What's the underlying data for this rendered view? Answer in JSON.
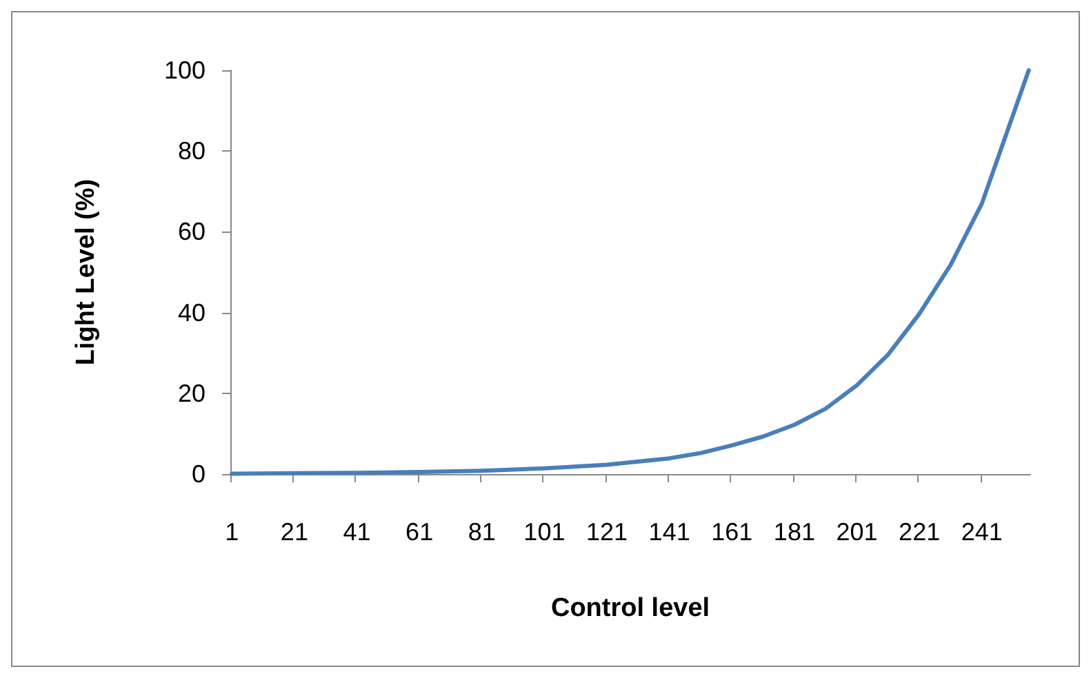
{
  "chart_data": {
    "type": "line",
    "xlabel": "Control level",
    "ylabel": "Light Level (%)",
    "x": [
      1,
      21,
      41,
      61,
      81,
      101,
      121,
      141,
      151,
      161,
      171,
      181,
      191,
      201,
      211,
      221,
      231,
      241,
      256
    ],
    "series": [
      {
        "color": "#4a7ebb",
        "values": [
          0.1,
          0.2,
          0.3,
          0.5,
          0.8,
          1.4,
          2.3,
          3.9,
          5.2,
          7.1,
          9.3,
          12.2,
          16.2,
          22,
          29.6,
          39.7,
          51.8,
          67,
          100
        ]
      }
    ],
    "xlim": [
      0.5,
      256.5
    ],
    "xticks": [
      {
        "value": 0.5,
        "label": null
      },
      1,
      {
        "value": 20.5,
        "label": null
      },
      21,
      {
        "value": 40.5,
        "label": null
      },
      41,
      {
        "value": 60.5,
        "label": null
      },
      61,
      {
        "value": 80.5,
        "label": null
      },
      81,
      {
        "value": 100.5,
        "label": null
      },
      101,
      {
        "value": 120.5,
        "label": null
      },
      121,
      {
        "value": 140.5,
        "label": null
      },
      141,
      {
        "value": 160.5,
        "label": null
      },
      161,
      {
        "value": 180.5,
        "label": null
      },
      181,
      {
        "value": 200.5,
        "label": null
      },
      201,
      {
        "value": 220.5,
        "label": null
      },
      221,
      {
        "value": 240.5,
        "label": null
      },
      241
    ],
    "ylim": [
      0,
      100
    ],
    "yticks": [
      0,
      20,
      40,
      60,
      80,
      100
    ],
    "marker": "none",
    "line_style": "solid"
  }
}
